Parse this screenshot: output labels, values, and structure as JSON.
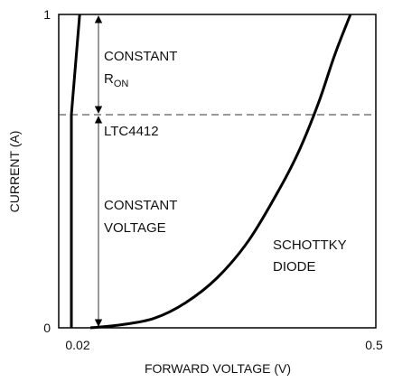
{
  "chart_data": {
    "type": "line",
    "xlabel": "FORWARD VOLTAGE (V)",
    "ylabel": "CURRENT (A)",
    "xlim": [
      0,
      0.5
    ],
    "ylim": [
      0,
      1
    ],
    "x_ticks": [
      "0.02",
      "0.5"
    ],
    "y_ticks": [
      "0",
      "1"
    ],
    "grid": false,
    "series": [
      {
        "name": "LTC4412",
        "color": "#000000",
        "x": [
          0.02,
          0.02,
          0.033
        ],
        "y": [
          0,
          0.68,
          1.0
        ]
      },
      {
        "name": "SCHOTTKY DIODE",
        "color": "#000000",
        "x": [
          0.05,
          0.1,
          0.15,
          0.2,
          0.25,
          0.3,
          0.35,
          0.38,
          0.41,
          0.435,
          0.46
        ],
        "y": [
          0,
          0.01,
          0.03,
          0.08,
          0.16,
          0.28,
          0.45,
          0.57,
          0.72,
          0.87,
          1.0
        ]
      }
    ],
    "reference_line": {
      "y": 0.68,
      "style": "dashed"
    },
    "annotations": {
      "constant_ron_line1": "CONSTANT",
      "constant_ron_line2_main": "R",
      "constant_ron_line2_sub": "ON",
      "ltc4412": "LTC4412",
      "constant_voltage_line1": "CONSTANT",
      "constant_voltage_line2": "VOLTAGE",
      "schottky_line1": "SCHOTTKY",
      "schottky_line2": "DIODE"
    }
  }
}
